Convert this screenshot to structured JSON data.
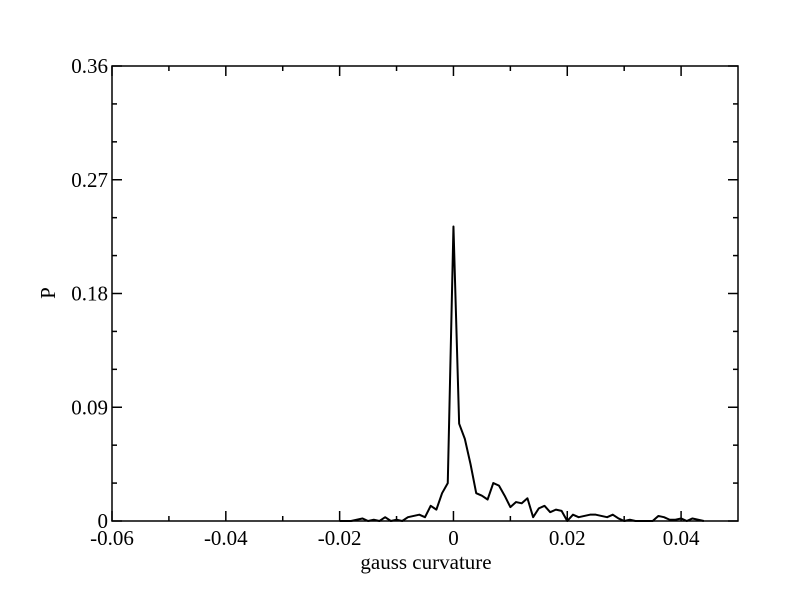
{
  "chart_data": {
    "type": "line",
    "x_label": "gauss curvature",
    "y_label": "P",
    "xlim": [
      -0.06,
      0.05
    ],
    "ylim": [
      0,
      0.36
    ],
    "xticks": [
      -0.06,
      -0.04,
      -0.02,
      0,
      0.02,
      0.04
    ],
    "yticks": [
      0,
      0.09,
      0.18,
      0.27,
      0.36
    ],
    "xminorticks": [
      -0.05,
      -0.03,
      -0.01,
      0.01,
      0.03
    ],
    "yminorticks": [
      0.03,
      0.06,
      0.12,
      0.15,
      0.21,
      0.24,
      0.3,
      0.33
    ],
    "color": "#000000",
    "x": [
      -0.02,
      -0.019,
      -0.018,
      -0.017,
      -0.016,
      -0.015,
      -0.014,
      -0.013,
      -0.012,
      -0.011,
      -0.01,
      -0.009,
      -0.008,
      -0.007,
      -0.006,
      -0.005,
      -0.004,
      -0.003,
      -0.002,
      -0.001,
      0,
      0.001,
      0.002,
      0.003,
      0.004,
      0.005,
      0.006,
      0.007,
      0.008,
      0.009,
      0.01,
      0.011,
      0.012,
      0.013,
      0.014,
      0.015,
      0.016,
      0.017,
      0.018,
      0.019,
      0.02,
      0.021,
      0.022,
      0.023,
      0.024,
      0.025,
      0.026,
      0.027,
      0.028,
      0.029,
      0.03,
      0.031,
      0.032,
      0.033,
      0.034,
      0.035,
      0.036,
      0.037,
      0.038,
      0.039,
      0.04,
      0.041,
      0.042,
      0.043,
      0.044
    ],
    "values": [
      0,
      0,
      0,
      0.001,
      0.002,
      0,
      0.001,
      0,
      0.003,
      0,
      0.001,
      0,
      0.003,
      0.004,
      0.005,
      0.003,
      0.012,
      0.009,
      0.022,
      0.03,
      0.233,
      0.077,
      0.065,
      0.045,
      0.022,
      0.02,
      0.017,
      0.03,
      0.028,
      0.02,
      0.011,
      0.015,
      0.014,
      0.018,
      0.003,
      0.01,
      0.012,
      0.007,
      0.009,
      0.008,
      0,
      0.005,
      0.003,
      0.004,
      0.005,
      0.005,
      0.004,
      0.003,
      0.005,
      0.002,
      0,
      0.001,
      0,
      0,
      0,
      0,
      0.004,
      0.003,
      0.001,
      0.001,
      0.002,
      0,
      0.002,
      0.001,
      0
    ]
  }
}
